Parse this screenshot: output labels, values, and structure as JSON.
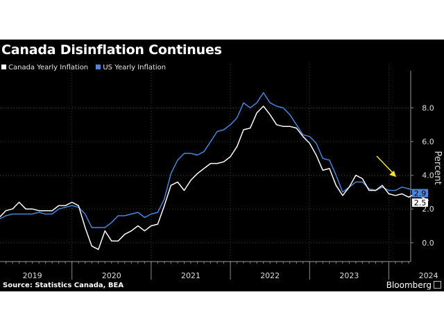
{
  "title": "Canada Disinflation Continues",
  "source": "Source: Statistics Canada, BEA",
  "brand": "Bloomberg",
  "brand_icon": "bloomberg-terminal-icon",
  "annotation_arrow": {
    "color": "#f5e13c",
    "icon": "arrow-down-right"
  },
  "colors": {
    "background": "#000000",
    "canada": "#ffffff",
    "us": "#4a86d8",
    "grid": "#3c3c3c",
    "text": "#dddddd"
  },
  "chart_data": {
    "type": "line",
    "xlabel": "",
    "ylabel": "Percent",
    "ylim": [
      -1.2,
      10.2
    ],
    "y_ticks": [
      0.0,
      2.0,
      4.0,
      6.0,
      8.0
    ],
    "y_tick_labels": [
      "0.0",
      "2.0",
      "4.0",
      "6.0",
      "8.0"
    ],
    "x_tick_labels": [
      "2019",
      "2020",
      "2021",
      "2022",
      "2023",
      "2024"
    ],
    "grid": true,
    "legend_position": "top-left",
    "start": "2019-01",
    "series": [
      {
        "name": "Canada Yearly Inflation",
        "color": "#ffffff",
        "last_label": "2.5",
        "values": [
          1.4,
          1.5,
          1.9,
          2.0,
          2.4,
          2.0,
          2.0,
          1.9,
          1.9,
          1.9,
          2.2,
          2.2,
          2.4,
          2.2,
          0.9,
          -0.2,
          -0.4,
          0.7,
          0.1,
          0.1,
          0.5,
          0.7,
          1.0,
          0.7,
          1.0,
          1.1,
          2.2,
          3.4,
          3.6,
          3.1,
          3.7,
          4.1,
          4.4,
          4.7,
          4.7,
          4.8,
          5.1,
          5.7,
          6.7,
          6.8,
          7.7,
          8.1,
          7.6,
          7.0,
          6.9,
          6.9,
          6.8,
          6.3,
          5.9,
          5.2,
          4.3,
          4.4,
          3.4,
          2.8,
          3.3,
          4.0,
          3.8,
          3.1,
          3.1,
          3.4,
          2.9,
          2.8,
          2.9,
          2.7,
          2.9,
          2.7,
          2.5
        ]
      },
      {
        "name": "US Yearly Inflation",
        "color": "#4a86d8",
        "last_label": "2.9",
        "values": [
          1.4,
          1.4,
          1.6,
          1.7,
          1.7,
          1.7,
          1.7,
          1.8,
          1.7,
          1.7,
          2.0,
          2.1,
          2.2,
          2.1,
          1.7,
          0.9,
          0.9,
          0.9,
          1.2,
          1.6,
          1.6,
          1.7,
          1.8,
          1.5,
          1.7,
          1.8,
          2.6,
          4.1,
          4.9,
          5.3,
          5.3,
          5.2,
          5.4,
          6.0,
          6.6,
          6.7,
          7.0,
          7.4,
          8.3,
          8.0,
          8.3,
          8.9,
          8.3,
          8.1,
          8.0,
          7.6,
          7.0,
          6.4,
          6.3,
          5.9,
          5.0,
          4.9,
          4.0,
          3.0,
          3.3,
          3.6,
          3.6,
          3.2,
          3.1,
          3.3,
          3.1,
          3.1,
          3.3,
          3.2,
          3.1,
          2.9,
          2.9
        ]
      }
    ]
  }
}
